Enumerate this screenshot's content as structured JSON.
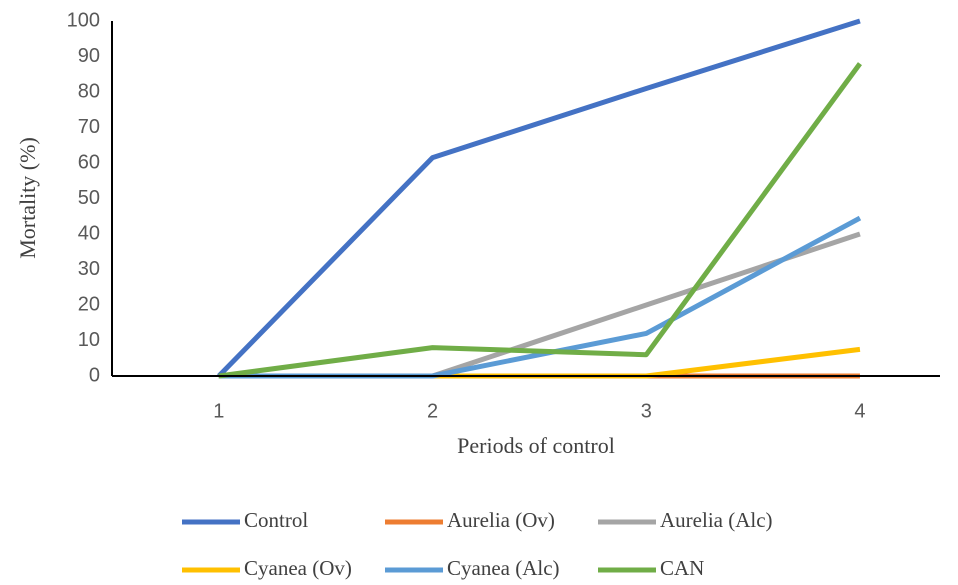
{
  "chart_data": {
    "type": "line",
    "x_label": "Periods of control",
    "y_label": "Mortality (%)",
    "categories": [
      "1",
      "2",
      "3",
      "4"
    ],
    "ylim": [
      0,
      100
    ],
    "yticks": [
      0,
      10,
      20,
      30,
      40,
      50,
      60,
      70,
      80,
      90,
      100
    ],
    "grid": false,
    "legend": "bottom",
    "series": [
      {
        "name": "Control",
        "color": "#4472c4",
        "values": [
          0,
          61.5,
          81,
          100
        ]
      },
      {
        "name": "Aurelia (Ov)",
        "color": "#ed7d31",
        "values": [
          0,
          0,
          0,
          0
        ]
      },
      {
        "name": "Aurelia (Alc)",
        "color": "#a5a5a5",
        "values": [
          0,
          0,
          20,
          40
        ]
      },
      {
        "name": "Cyanea (Ov)",
        "color": "#ffc000",
        "values": [
          0,
          0,
          0,
          7.5
        ]
      },
      {
        "name": "Cyanea (Alc)",
        "color": "#5b9bd5",
        "values": [
          0,
          0,
          12,
          44.5
        ]
      },
      {
        "name": "CAN",
        "color": "#70ad47",
        "values": [
          0,
          8,
          6,
          88
        ]
      }
    ]
  }
}
